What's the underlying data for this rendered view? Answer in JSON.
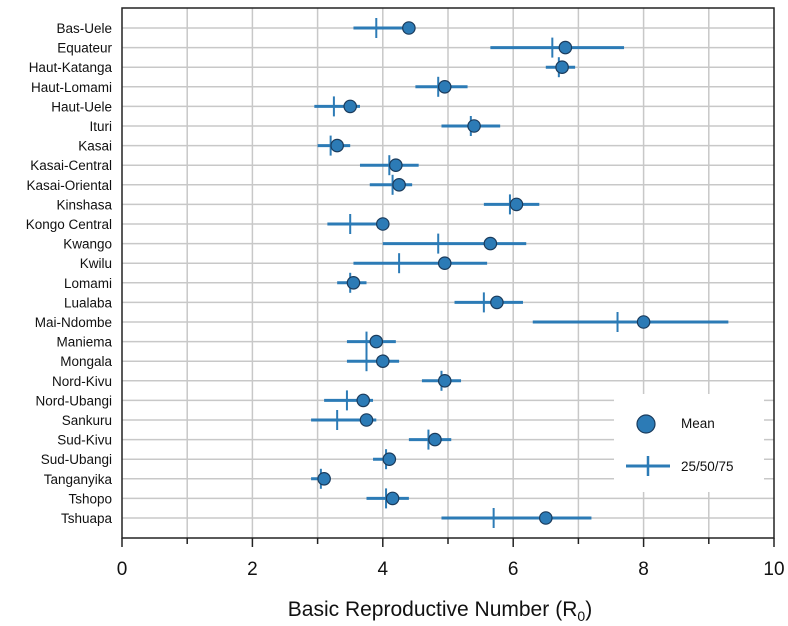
{
  "chart_data": {
    "type": "scatter",
    "title": "",
    "xlabel": "Basic Reproductive Number",
    "xlabel_subscript": "0",
    "xlim": [
      0,
      10
    ],
    "xticks": [
      "0",
      "2",
      "4",
      "6",
      "8",
      "10"
    ],
    "grid": true,
    "legend_position": "bottom-right",
    "legend": {
      "mean": "Mean",
      "quartiles": "25/50/75"
    },
    "colors": {
      "mean": "#2c7bb6",
      "mean_edge": "#1a3b5c",
      "quartiles": "#2c7bb6"
    },
    "provinces": [
      {
        "name": "Bas-Uele",
        "mean": 4.4,
        "q25": 3.55,
        "median": 3.9,
        "q75": 4.4
      },
      {
        "name": "Equateur",
        "mean": 6.8,
        "q25": 5.65,
        "median": 6.6,
        "q75": 7.7
      },
      {
        "name": "Haut-Katanga",
        "mean": 6.75,
        "q25": 6.5,
        "median": 6.7,
        "q75": 6.95
      },
      {
        "name": "Haut-Lomami",
        "mean": 4.95,
        "q25": 4.5,
        "median": 4.85,
        "q75": 5.3
      },
      {
        "name": "Haut-Uele",
        "mean": 3.5,
        "q25": 2.95,
        "median": 3.25,
        "q75": 3.65
      },
      {
        "name": "Ituri",
        "mean": 5.4,
        "q25": 4.9,
        "median": 5.35,
        "q75": 5.8
      },
      {
        "name": "Kasai",
        "mean": 3.3,
        "q25": 3.0,
        "median": 3.2,
        "q75": 3.5
      },
      {
        "name": "Kasai-Central",
        "mean": 4.2,
        "q25": 3.65,
        "median": 4.1,
        "q75": 4.55
      },
      {
        "name": "Kasai-Oriental",
        "mean": 4.25,
        "q25": 3.8,
        "median": 4.15,
        "q75": 4.45
      },
      {
        "name": "Kinshasa",
        "mean": 6.05,
        "q25": 5.55,
        "median": 5.95,
        "q75": 6.4
      },
      {
        "name": "Kongo Central",
        "mean": 4.0,
        "q25": 3.15,
        "median": 3.5,
        "q75": 4.0
      },
      {
        "name": "Kwango",
        "mean": 5.65,
        "q25": 4.0,
        "median": 4.85,
        "q75": 6.2
      },
      {
        "name": "Kwilu",
        "mean": 4.95,
        "q25": 3.55,
        "median": 4.25,
        "q75": 5.6
      },
      {
        "name": "Lomami",
        "mean": 3.55,
        "q25": 3.3,
        "median": 3.5,
        "q75": 3.75
      },
      {
        "name": "Lualaba",
        "mean": 5.75,
        "q25": 5.1,
        "median": 5.55,
        "q75": 6.15
      },
      {
        "name": "Mai-Ndombe",
        "mean": 8.0,
        "q25": 6.3,
        "median": 7.6,
        "q75": 9.3
      },
      {
        "name": "Maniema",
        "mean": 3.9,
        "q25": 3.45,
        "median": 3.75,
        "q75": 4.2
      },
      {
        "name": "Mongala",
        "mean": 4.0,
        "q25": 3.45,
        "median": 3.75,
        "q75": 4.25
      },
      {
        "name": "Nord-Kivu",
        "mean": 4.95,
        "q25": 4.6,
        "median": 4.9,
        "q75": 5.2
      },
      {
        "name": "Nord-Ubangi",
        "mean": 3.7,
        "q25": 3.1,
        "median": 3.45,
        "q75": 3.85
      },
      {
        "name": "Sankuru",
        "mean": 3.75,
        "q25": 2.9,
        "median": 3.3,
        "q75": 3.9
      },
      {
        "name": "Sud-Kivu",
        "mean": 4.8,
        "q25": 4.4,
        "median": 4.7,
        "q75": 5.05
      },
      {
        "name": "Sud-Ubangi",
        "mean": 4.1,
        "q25": 3.85,
        "median": 4.05,
        "q75": 4.2
      },
      {
        "name": "Tanganyika",
        "mean": 3.1,
        "q25": 2.9,
        "median": 3.05,
        "q75": 3.2
      },
      {
        "name": "Tshopo",
        "mean": 4.15,
        "q25": 3.75,
        "median": 4.05,
        "q75": 4.4
      },
      {
        "name": "Tshuapa",
        "mean": 6.5,
        "q25": 4.9,
        "median": 5.7,
        "q75": 7.2
      }
    ]
  }
}
